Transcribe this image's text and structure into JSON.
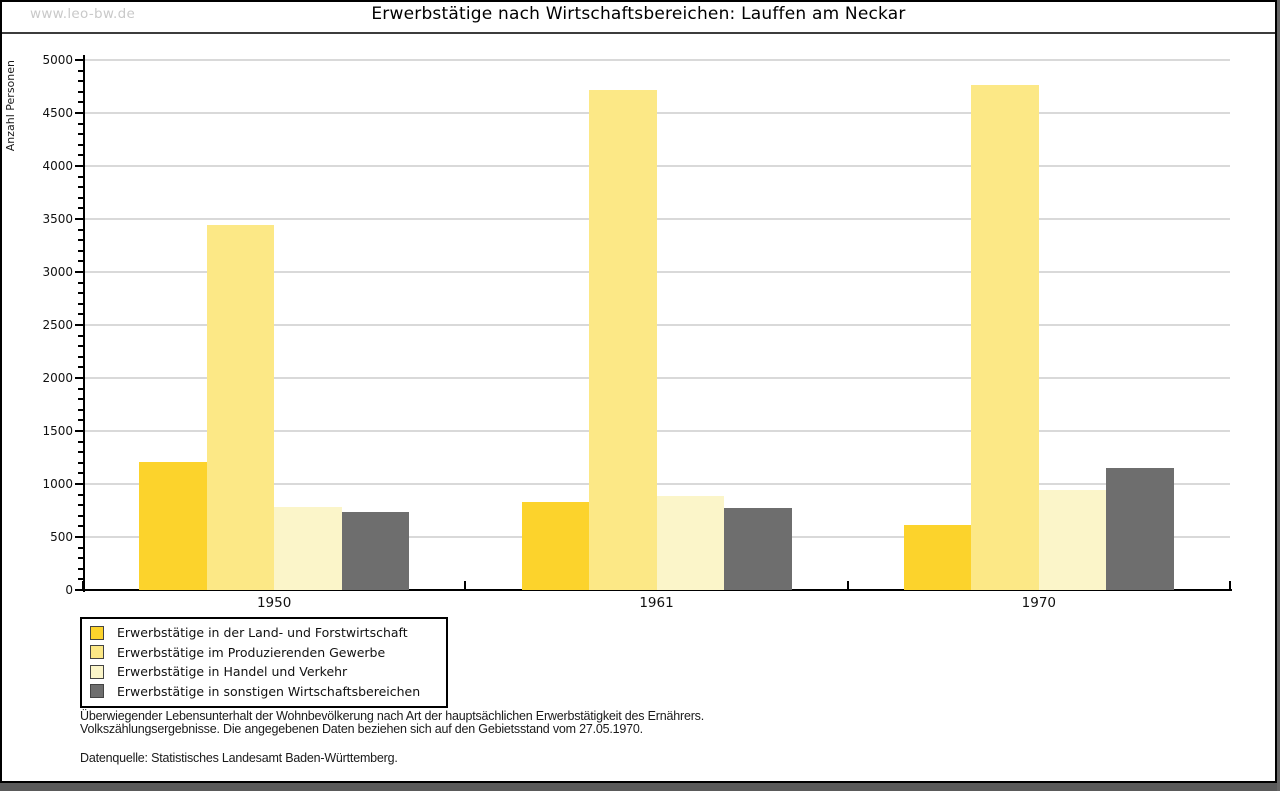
{
  "watermark": "www.leo-bw.de",
  "title": "Erwerbstätige nach Wirtschaftsbereichen: Lauffen am Neckar",
  "chart_data": {
    "type": "bar",
    "title": "Erwerbstätige nach Wirtschaftsbereichen: Lauffen am Neckar",
    "xlabel": "",
    "ylabel": "Anzahl Personen",
    "ylim": [
      0,
      5000
    ],
    "ytick_major_step": 500,
    "ytick_minor_step": 100,
    "grid": true,
    "legend_position": "bottom-left",
    "categories": [
      "1950",
      "1961",
      "1970"
    ],
    "series": [
      {
        "name": "Erwerbstätige in der Land- und Forstwirtschaft",
        "color": "#fcd32c",
        "values": [
          1210,
          830,
          610
        ]
      },
      {
        "name": "Erwerbstätige im Produzierenden Gewerbe",
        "color": "#fce886",
        "values": [
          3440,
          4720,
          4760
        ]
      },
      {
        "name": "Erwerbstätige in Handel und Verkehr",
        "color": "#fbf5c9",
        "values": [
          780,
          890,
          940
        ]
      },
      {
        "name": "Erwerbstätige in sonstigen Wirtschaftsbereichen",
        "color": "#6e6e6e",
        "values": [
          740,
          770,
          1150
        ]
      }
    ]
  },
  "footnotes": {
    "line1": "Überwiegender Lebensunterhalt der Wohnbevölkerung nach Art der hauptsächlichen Erwerbstätigkeit des Ernährers.",
    "line2": "Volkszählungsergebnisse. Die angegebenen Daten beziehen sich auf den Gebietsstand vom 27.05.1970.",
    "source": "Datenquelle: Statistisches Landesamt Baden-Württemberg."
  },
  "colors": {
    "gridline": "#d9d9d9",
    "axis": "#000000",
    "watermark": "#c9c9c9",
    "frame_shadow": "#5a5a5a"
  }
}
